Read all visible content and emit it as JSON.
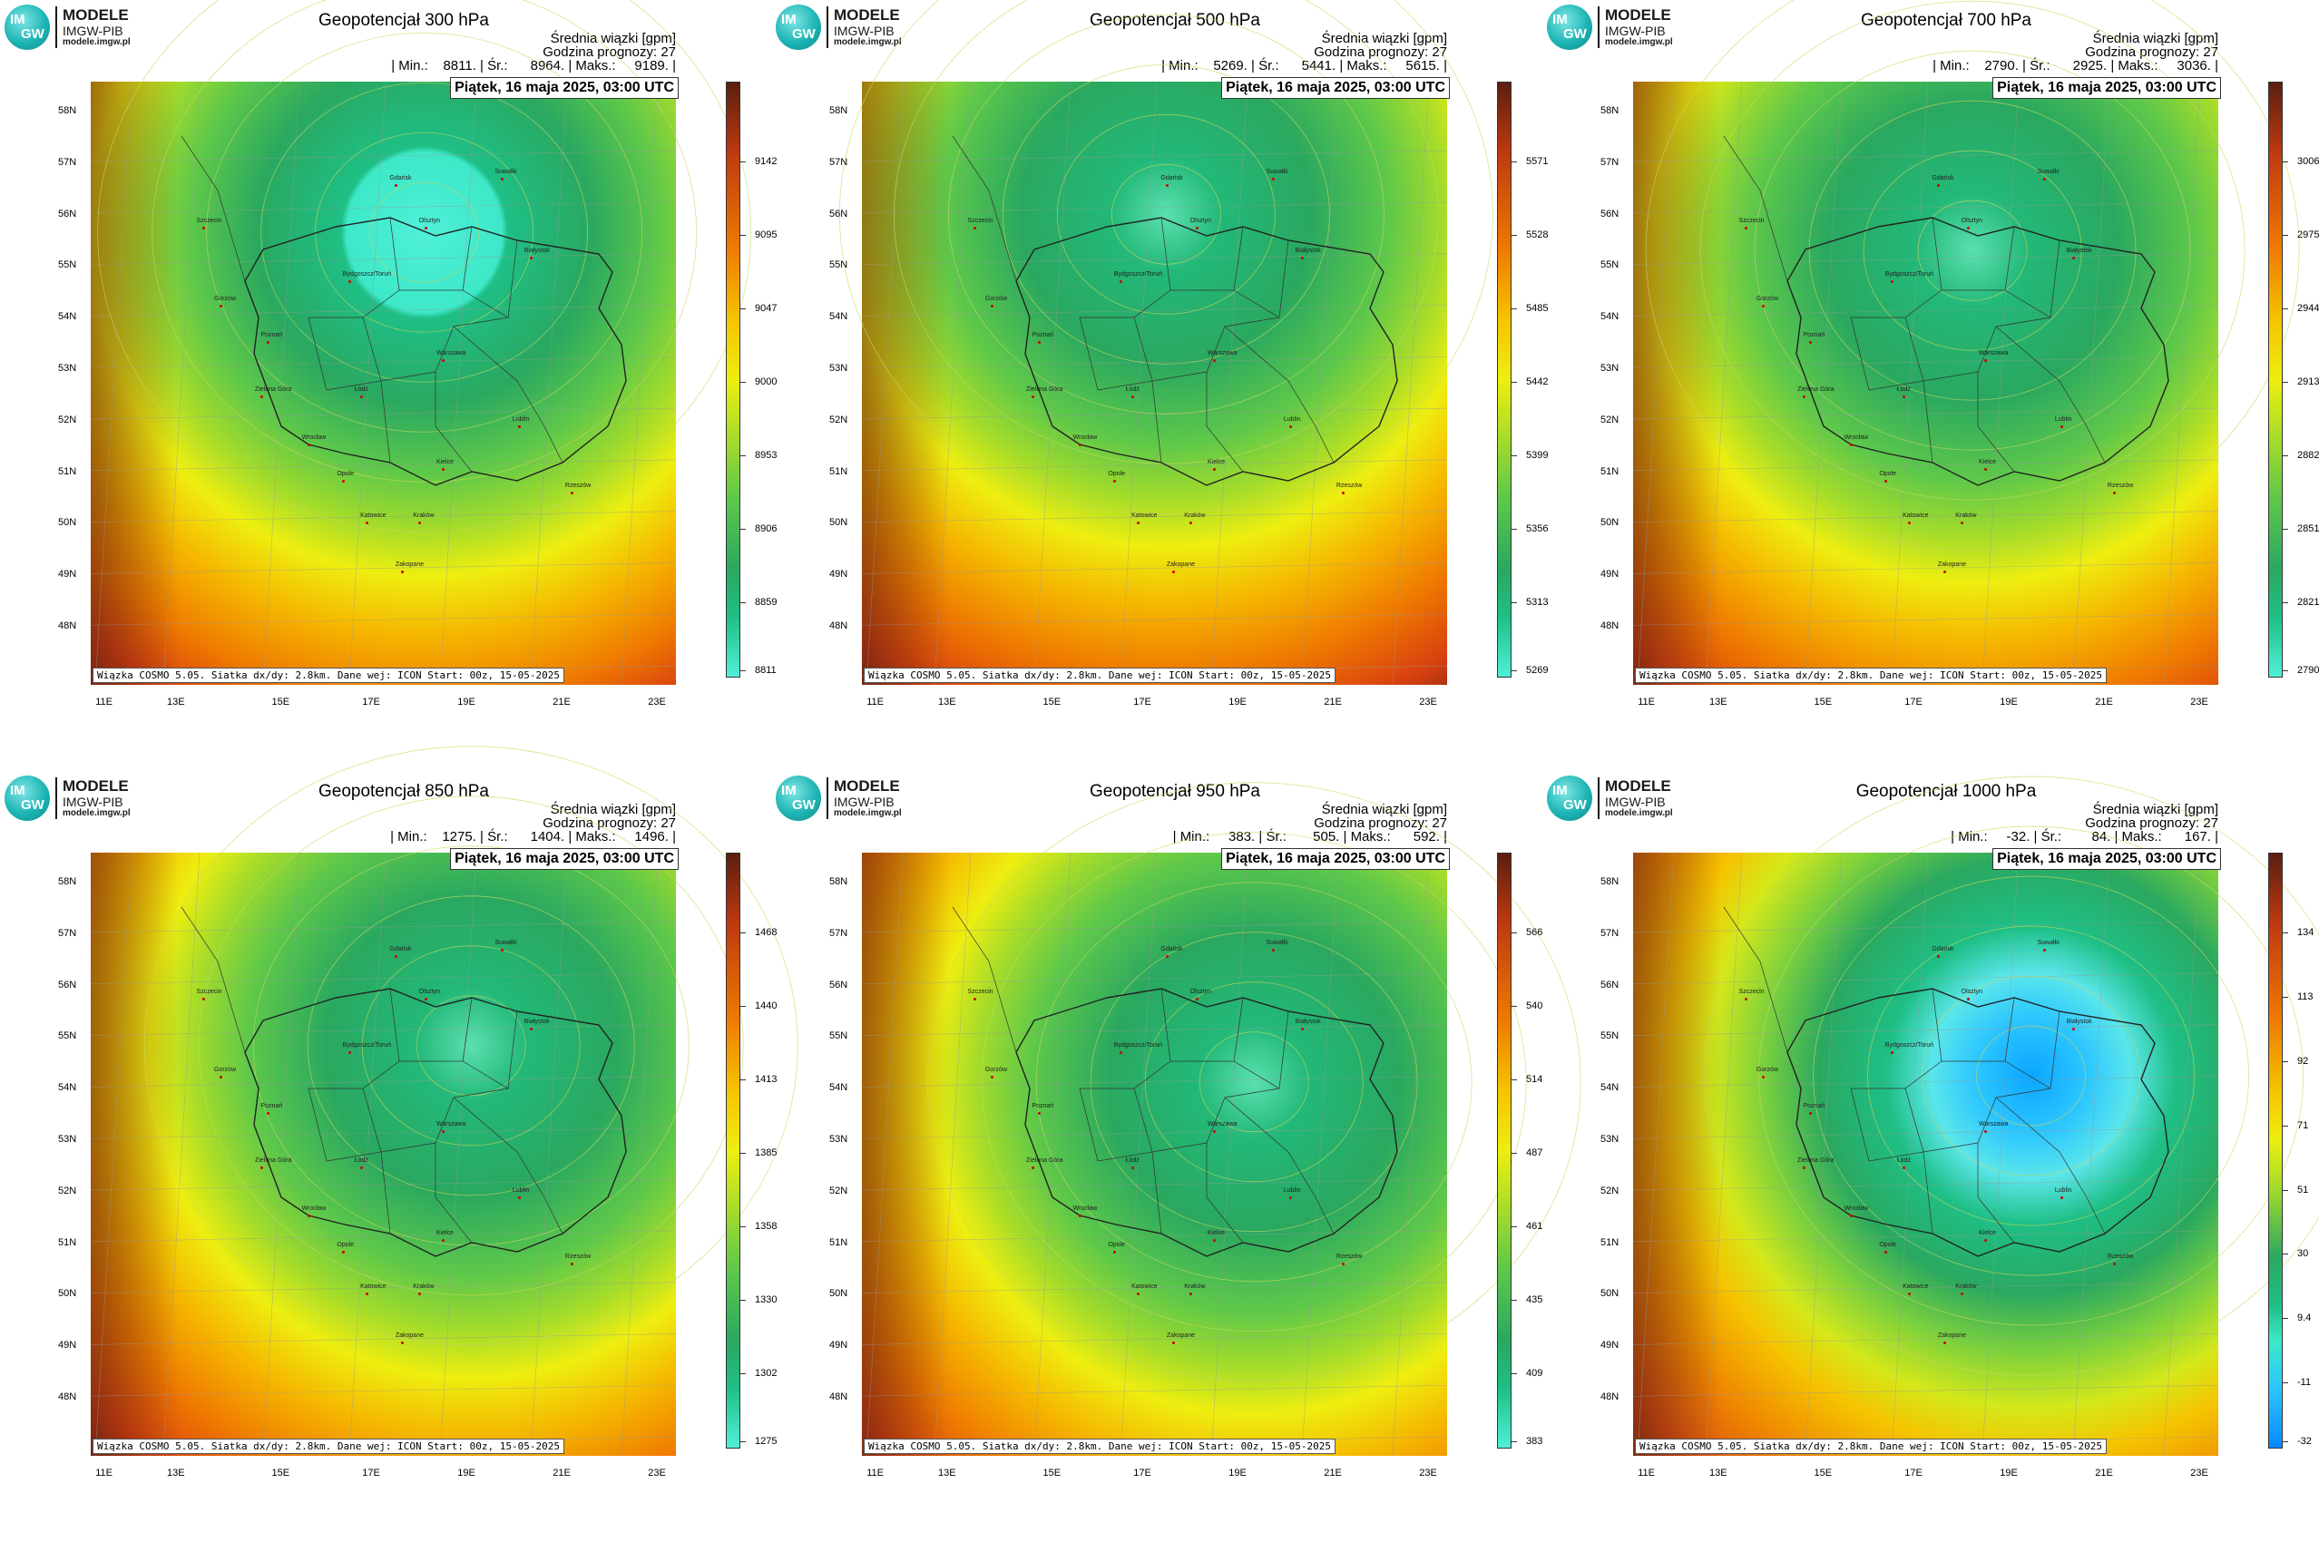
{
  "logo": {
    "mark_top": "IM",
    "mark_bottom": "GW",
    "name": "MODELE",
    "org": "IMGW-PIB",
    "url": "modele.imgw.pl"
  },
  "common": {
    "description": "Średnia wiązki [gpm]",
    "forecast_hour": "Godzina prognozy: 27",
    "date": "Piątek, 16 maja 2025, 03:00 UTC",
    "footer": "Wiązka COSMO 5.05. Siatka dx/dy: 2.8km. Dane wej: ICON Start: 00z, 15-05-2025",
    "lat_labels": [
      "58N",
      "57N",
      "56N",
      "55N",
      "54N",
      "53N",
      "52N",
      "51N",
      "50N",
      "49N",
      "48N"
    ],
    "lon_labels": [
      "11E",
      "13E",
      "15E",
      "17E",
      "19E",
      "21E",
      "23E"
    ]
  },
  "cities": [
    {
      "name": "Gdańsk"
    },
    {
      "name": "Olsztyn"
    },
    {
      "name": "Suwałki"
    },
    {
      "name": "Białystok"
    },
    {
      "name": "Szczecin"
    },
    {
      "name": "Bydgoszcz/Toruń"
    },
    {
      "name": "Gorzów"
    },
    {
      "name": "Poznań"
    },
    {
      "name": "Warszawa"
    },
    {
      "name": "Zielona Góra"
    },
    {
      "name": "Łódź"
    },
    {
      "name": "Lublin"
    },
    {
      "name": "Wrocław"
    },
    {
      "name": "Kielce"
    },
    {
      "name": "Opole"
    },
    {
      "name": "Rzeszów"
    },
    {
      "name": "Katowice"
    },
    {
      "name": "Kraków"
    },
    {
      "name": "Zakopane"
    }
  ],
  "panels": [
    {
      "title": "Geopotencjał 300 hPa",
      "stats": "| Min.:    8811. | Śr.:      8964. | Maks.:     9189. |",
      "legend_ticks": [
        "9142",
        "9095",
        "9047",
        "9000",
        "8953",
        "8906",
        "8859",
        "8811"
      ],
      "low_center": [
        0.57,
        0.25
      ],
      "low_kind": "cyan"
    },
    {
      "title": "Geopotencjał 500 hPa",
      "stats": "| Min.:    5269. | Śr.:      5441. | Maks.:     5615. |",
      "legend_ticks": [
        "5571",
        "5528",
        "5485",
        "5442",
        "5399",
        "5356",
        "5313",
        "5269"
      ],
      "low_center": [
        0.52,
        0.22
      ],
      "low_kind": "green"
    },
    {
      "title": "Geopotencjał 700 hPa",
      "stats": "| Min.:    2790. | Śr.:      2925. | Maks.:     3036. |",
      "legend_ticks": [
        "3006",
        "2975",
        "2944",
        "2913",
        "2882",
        "2851",
        "2821",
        "2790"
      ],
      "low_center": [
        0.58,
        0.28
      ],
      "low_kind": "green"
    },
    {
      "title": "Geopotencjał 850 hPa",
      "stats": "| Min.:    1275. | Śr.:      1404. | Maks.:     1496. |",
      "legend_ticks": [
        "1468",
        "1440",
        "1413",
        "1385",
        "1358",
        "1330",
        "1302",
        "1275"
      ],
      "low_center": [
        0.65,
        0.32
      ],
      "low_kind": "green"
    },
    {
      "title": "Geopotencjał 950 hPa",
      "stats": "| Min.:     383. | Śr.:       505. | Maks.:      592. |",
      "legend_ticks": [
        "566",
        "540",
        "514",
        "487",
        "461",
        "435",
        "409",
        "383"
      ],
      "low_center": [
        0.67,
        0.38
      ],
      "low_kind": "green"
    },
    {
      "title": "Geopotencjał 1000 hPa",
      "stats": "| Min.:     -32. | Śr.:        84. | Maks.:      167. |",
      "legend_ticks": [
        "134",
        "113",
        "92",
        "71",
        "51",
        "30",
        "9.4",
        "-11",
        "-32"
      ],
      "low_center": [
        0.68,
        0.37
      ],
      "low_kind": "blue"
    }
  ]
}
